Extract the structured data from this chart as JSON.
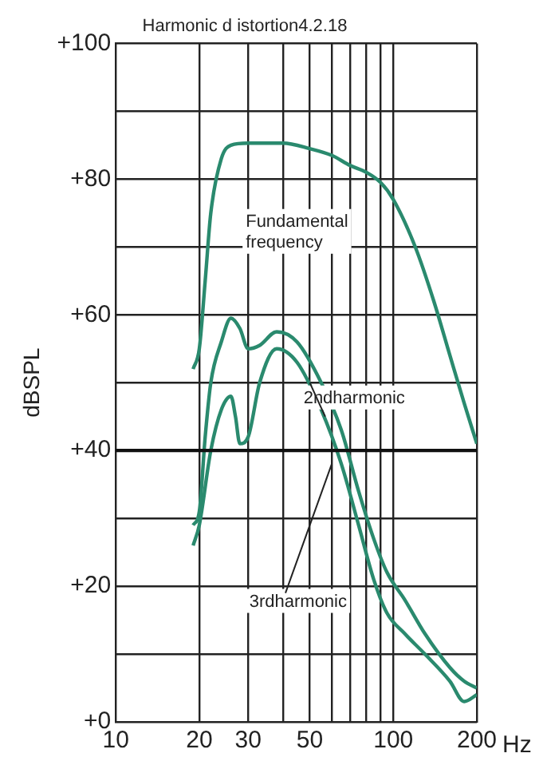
{
  "chart_data": {
    "type": "line",
    "title": "Harmonic d istortion4.2.18",
    "xlabel": "Hz",
    "ylabel": "dBSPL",
    "log": "x",
    "xlim": [
      10,
      200
    ],
    "xticks": [
      10,
      20,
      30,
      {
        "value": 40,
        "label": null
      },
      50,
      {
        "value": 60,
        "label": null
      },
      {
        "value": 70,
        "label": null
      },
      {
        "value": 80,
        "label": null
      },
      {
        "value": 90,
        "label": null
      },
      100,
      200
    ],
    "ylim": [
      0,
      100
    ],
    "yticks": [
      {
        "value": 0,
        "label": "+0"
      },
      {
        "value": 10,
        "label": null
      },
      {
        "value": 20,
        "label": "+20"
      },
      {
        "value": 30,
        "label": null
      },
      {
        "value": 40,
        "label": "+40"
      },
      {
        "value": 50,
        "label": null
      },
      {
        "value": 60,
        "label": "+60"
      },
      {
        "value": 70,
        "label": null
      },
      {
        "value": 80,
        "label": "+80"
      },
      {
        "value": 90,
        "label": null
      },
      {
        "value": 100,
        "label": "+100"
      }
    ],
    "grid": true,
    "legend": false,
    "marker": "none",
    "line_style": "solid",
    "annotations": [
      "Fundamental frequency",
      {
        "text": "2ndharmonic",
        "x": 50,
        "y": 50
      },
      {
        "text": "3rdharmonic",
        "x": 60,
        "y": 38
      }
    ],
    "ref_lines": [
      {
        "axis": "y",
        "value": 40,
        "color": "#111111"
      }
    ],
    "series": [
      {
        "color": "#2a8a6e",
        "x": [
          19,
          20,
          21,
          22,
          24,
          26,
          30,
          40,
          50,
          60,
          70,
          80,
          90,
          100,
          120,
          140,
          160,
          180,
          200
        ],
        "values": [
          52,
          55,
          65,
          75,
          83,
          85,
          85.3,
          85.3,
          84.5,
          83.5,
          82,
          81,
          79.5,
          77,
          70,
          62,
          54,
          47,
          41
        ]
      },
      {
        "color": "#2a8a6e",
        "x": [
          19,
          20,
          21,
          22,
          24,
          26,
          28,
          30,
          33,
          38,
          45,
          55,
          65,
          75,
          85,
          95,
          110,
          130,
          160,
          180,
          200
        ],
        "values": [
          29,
          31,
          42,
          50,
          56,
          59.5,
          58,
          55,
          55.5,
          57.5,
          56,
          50,
          43,
          34,
          27,
          22,
          18,
          13,
          8,
          6,
          5
        ]
      },
      {
        "color": "#2a8a6e",
        "x": [
          19,
          20,
          22,
          24,
          26,
          27,
          28,
          30,
          33,
          38,
          45,
          55,
          65,
          75,
          85,
          95,
          110,
          130,
          160,
          180,
          200
        ],
        "values": [
          26,
          29,
          40,
          46,
          48,
          45,
          41,
          42,
          50,
          55,
          53,
          46,
          38,
          29,
          21,
          16,
          13,
          10,
          6,
          3,
          4
        ]
      }
    ]
  }
}
